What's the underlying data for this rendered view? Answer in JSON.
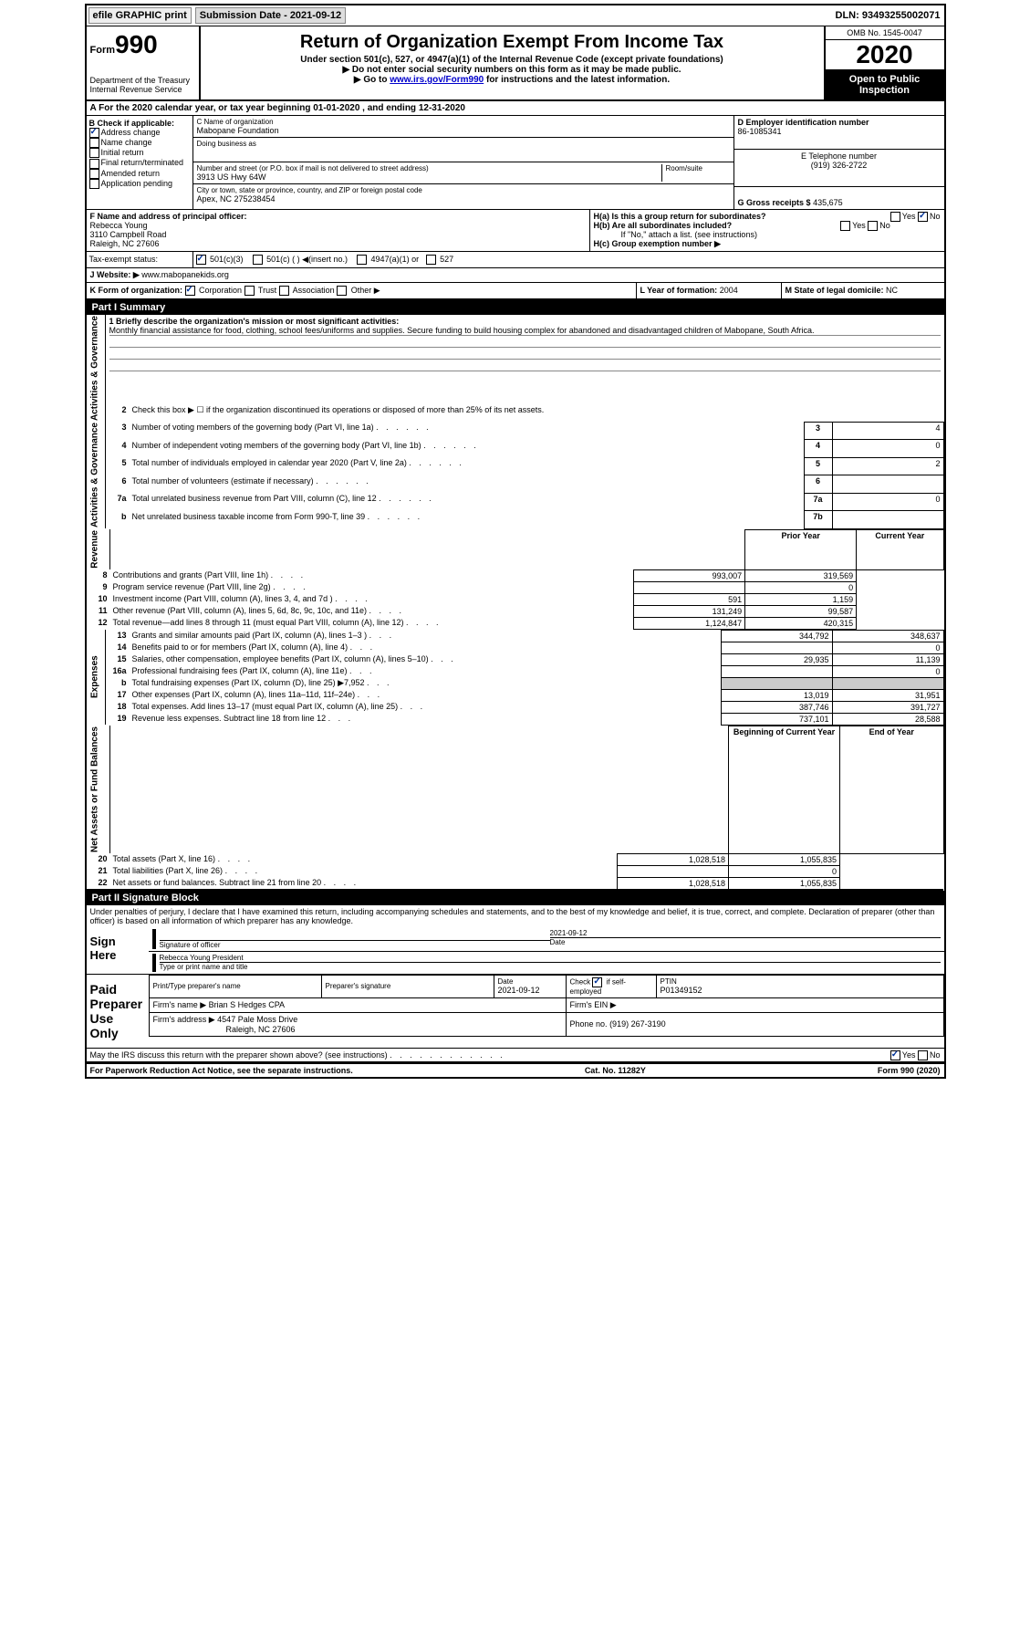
{
  "top": {
    "efile": "efile GRAPHIC print",
    "submission_label": "Submission Date - 2021-09-12",
    "dln": "DLN: 93493255002071"
  },
  "header": {
    "form_prefix": "Form",
    "form_num": "990",
    "dept": "Department of the Treasury",
    "irs": "Internal Revenue Service",
    "title": "Return of Organization Exempt From Income Tax",
    "sub1": "Under section 501(c), 527, or 4947(a)(1) of the Internal Revenue Code (except private foundations)",
    "sub2": "▶ Do not enter social security numbers on this form as it may be made public.",
    "sub3_pre": "▶ Go to ",
    "sub3_link": "www.irs.gov/Form990",
    "sub3_post": " for instructions and the latest information.",
    "omb": "OMB No. 1545-0047",
    "year": "2020",
    "open": "Open to Public Inspection"
  },
  "row_a": "A For the 2020 calendar year, or tax year beginning 01-01-2020    , and ending 12-31-2020",
  "section_b": {
    "label": "B Check if applicable:",
    "opts": [
      "Address change",
      "Name change",
      "Initial return",
      "Final return/terminated",
      "Amended return",
      "Application pending"
    ]
  },
  "section_c": {
    "name_label": "C Name of organization",
    "name": "Mabopane Foundation",
    "dba_label": "Doing business as",
    "addr_label": "Number and street (or P.O. box if mail is not delivered to street address)",
    "room_label": "Room/suite",
    "addr": "3913 US Hwy 64W",
    "city_label": "City or town, state or province, country, and ZIP or foreign postal code",
    "city": "Apex, NC  275238454"
  },
  "section_d": {
    "label": "D Employer identification number",
    "ein": "86-1085341",
    "tel_label": "E Telephone number",
    "tel": "(919) 326-2722",
    "gross_label": "G Gross receipts $",
    "gross": "435,675"
  },
  "section_f": {
    "label": "F  Name and address of principal officer:",
    "name": "Rebecca Young",
    "addr1": "3110 Campbell Road",
    "addr2": "Raleigh, NC  27606"
  },
  "section_h": {
    "ha": "H(a)  Is this a group return for subordinates?",
    "hb": "H(b)  Are all subordinates included?",
    "hb_note": "If \"No,\" attach a list. (see instructions)",
    "hc": "H(c)  Group exemption number ▶"
  },
  "tax_status": {
    "label": "Tax-exempt status:",
    "o1": "501(c)(3)",
    "o2": "501(c) (  ) ◀(insert no.)",
    "o3": "4947(a)(1) or",
    "o4": "527"
  },
  "website": {
    "label": "J   Website: ▶",
    "val": "www.mabopanekids.org"
  },
  "k_row": {
    "k": "K Form of organization:",
    "k_opts": [
      "Corporation",
      "Trust",
      "Association",
      "Other ▶"
    ],
    "l_label": "L Year of formation:",
    "l_val": "2004",
    "m_label": "M State of legal domicile:",
    "m_val": "NC"
  },
  "part1": {
    "header": "Part I      Summary",
    "line1_label": "1  Briefly describe the organization's mission or most significant activities:",
    "mission": "Monthly financial assistance for food, clothing, school fees/uniforms and supplies. Secure funding to build housing complex for abandoned and disadvantaged children of Mabopane, South Africa.",
    "line2": "Check this box ▶ ☐  if the organization discontinued its operations or disposed of more than 25% of its net assets.",
    "sections": {
      "gov_label": "Activities & Governance",
      "rev_label": "Revenue",
      "exp_label": "Expenses",
      "net_label": "Net Assets or Fund Balances"
    },
    "col_headers": {
      "prior": "Prior Year",
      "current": "Current Year",
      "begin": "Beginning of Current Year",
      "end": "End of Year"
    },
    "lines_top": [
      {
        "n": "3",
        "d": "Number of voting members of the governing body (Part VI, line 1a)",
        "box": "3",
        "v": "4"
      },
      {
        "n": "4",
        "d": "Number of independent voting members of the governing body (Part VI, line 1b)",
        "box": "4",
        "v": "0"
      },
      {
        "n": "5",
        "d": "Total number of individuals employed in calendar year 2020 (Part V, line 2a)",
        "box": "5",
        "v": "2"
      },
      {
        "n": "6",
        "d": "Total number of volunteers (estimate if necessary)",
        "box": "6",
        "v": ""
      },
      {
        "n": "7a",
        "d": "Total unrelated business revenue from Part VIII, column (C), line 12",
        "box": "7a",
        "v": "0"
      },
      {
        "n": "b",
        "d": "Net unrelated business taxable income from Form 990-T, line 39",
        "box": "7b",
        "v": ""
      }
    ],
    "lines_rev": [
      {
        "n": "8",
        "d": "Contributions and grants (Part VIII, line 1h)",
        "p": "993,007",
        "c": "319,569"
      },
      {
        "n": "9",
        "d": "Program service revenue (Part VIII, line 2g)",
        "p": "",
        "c": "0"
      },
      {
        "n": "10",
        "d": "Investment income (Part VIII, column (A), lines 3, 4, and 7d )",
        "p": "591",
        "c": "1,159"
      },
      {
        "n": "11",
        "d": "Other revenue (Part VIII, column (A), lines 5, 6d, 8c, 9c, 10c, and 11e)",
        "p": "131,249",
        "c": "99,587"
      },
      {
        "n": "12",
        "d": "Total revenue—add lines 8 through 11 (must equal Part VIII, column (A), line 12)",
        "p": "1,124,847",
        "c": "420,315"
      }
    ],
    "lines_exp": [
      {
        "n": "13",
        "d": "Grants and similar amounts paid (Part IX, column (A), lines 1–3 )",
        "p": "344,792",
        "c": "348,637"
      },
      {
        "n": "14",
        "d": "Benefits paid to or for members (Part IX, column (A), line 4)",
        "p": "",
        "c": "0"
      },
      {
        "n": "15",
        "d": "Salaries, other compensation, employee benefits (Part IX, column (A), lines 5–10)",
        "p": "29,935",
        "c": "11,139"
      },
      {
        "n": "16a",
        "d": "Professional fundraising fees (Part IX, column (A), line 11e)",
        "p": "",
        "c": "0"
      },
      {
        "n": "b",
        "d": "Total fundraising expenses (Part IX, column (D), line 25) ▶7,952",
        "p": "shaded",
        "c": "shaded"
      },
      {
        "n": "17",
        "d": "Other expenses (Part IX, column (A), lines 11a–11d, 11f–24e)",
        "p": "13,019",
        "c": "31,951"
      },
      {
        "n": "18",
        "d": "Total expenses. Add lines 13–17 (must equal Part IX, column (A), line 25)",
        "p": "387,746",
        "c": "391,727"
      },
      {
        "n": "19",
        "d": "Revenue less expenses. Subtract line 18 from line 12",
        "p": "737,101",
        "c": "28,588"
      }
    ],
    "lines_net": [
      {
        "n": "20",
        "d": "Total assets (Part X, line 16)",
        "p": "1,028,518",
        "c": "1,055,835"
      },
      {
        "n": "21",
        "d": "Total liabilities (Part X, line 26)",
        "p": "",
        "c": "0"
      },
      {
        "n": "22",
        "d": "Net assets or Subtract line 21 from line 20",
        "d_full": "Net assets or fund balances. Subtract line 21 from line 20",
        "p": "1,028,518",
        "c": "1,055,835"
      }
    ]
  },
  "part2": {
    "header": "Part II      Signature Block",
    "penalty": "Under penalties of perjury, I declare that I have examined this return, including accompanying schedules and statements, and to the best of my knowledge and belief, it is true, correct, and complete. Declaration of preparer (other than officer) is based on all information of which preparer has any knowledge.",
    "sign_here": "Sign Here",
    "sig_officer": "Signature of officer",
    "sig_date": "Date",
    "sig_date_val": "2021-09-12",
    "officer_name": "Rebecca Young President",
    "type_name": "Type or print name and title",
    "paid_prep": "Paid Preparer Use Only",
    "prep_name_label": "Print/Type preparer's name",
    "prep_sig_label": "Preparer's signature",
    "prep_date_label": "Date",
    "prep_date": "2021-09-12",
    "self_emp": "Check ☑ if self-employed",
    "ptin_label": "PTIN",
    "ptin": "P01349152",
    "firm_name_label": "Firm's name    ▶",
    "firm_name": "Brian S Hedges CPA",
    "firm_ein_label": "Firm's EIN ▶",
    "firm_addr_label": "Firm's address ▶",
    "firm_addr1": "4547 Pale Moss Drive",
    "firm_addr2": "Raleigh, NC  27606",
    "firm_phone_label": "Phone no.",
    "firm_phone": "(919) 267-3190",
    "discuss": "May the IRS discuss this return with the preparer shown above? (see instructions)"
  },
  "footer": {
    "paperwork": "For Paperwork Reduction Act Notice, see the separate instructions.",
    "cat": "Cat. No. 11282Y",
    "form": "Form 990 (2020)"
  }
}
